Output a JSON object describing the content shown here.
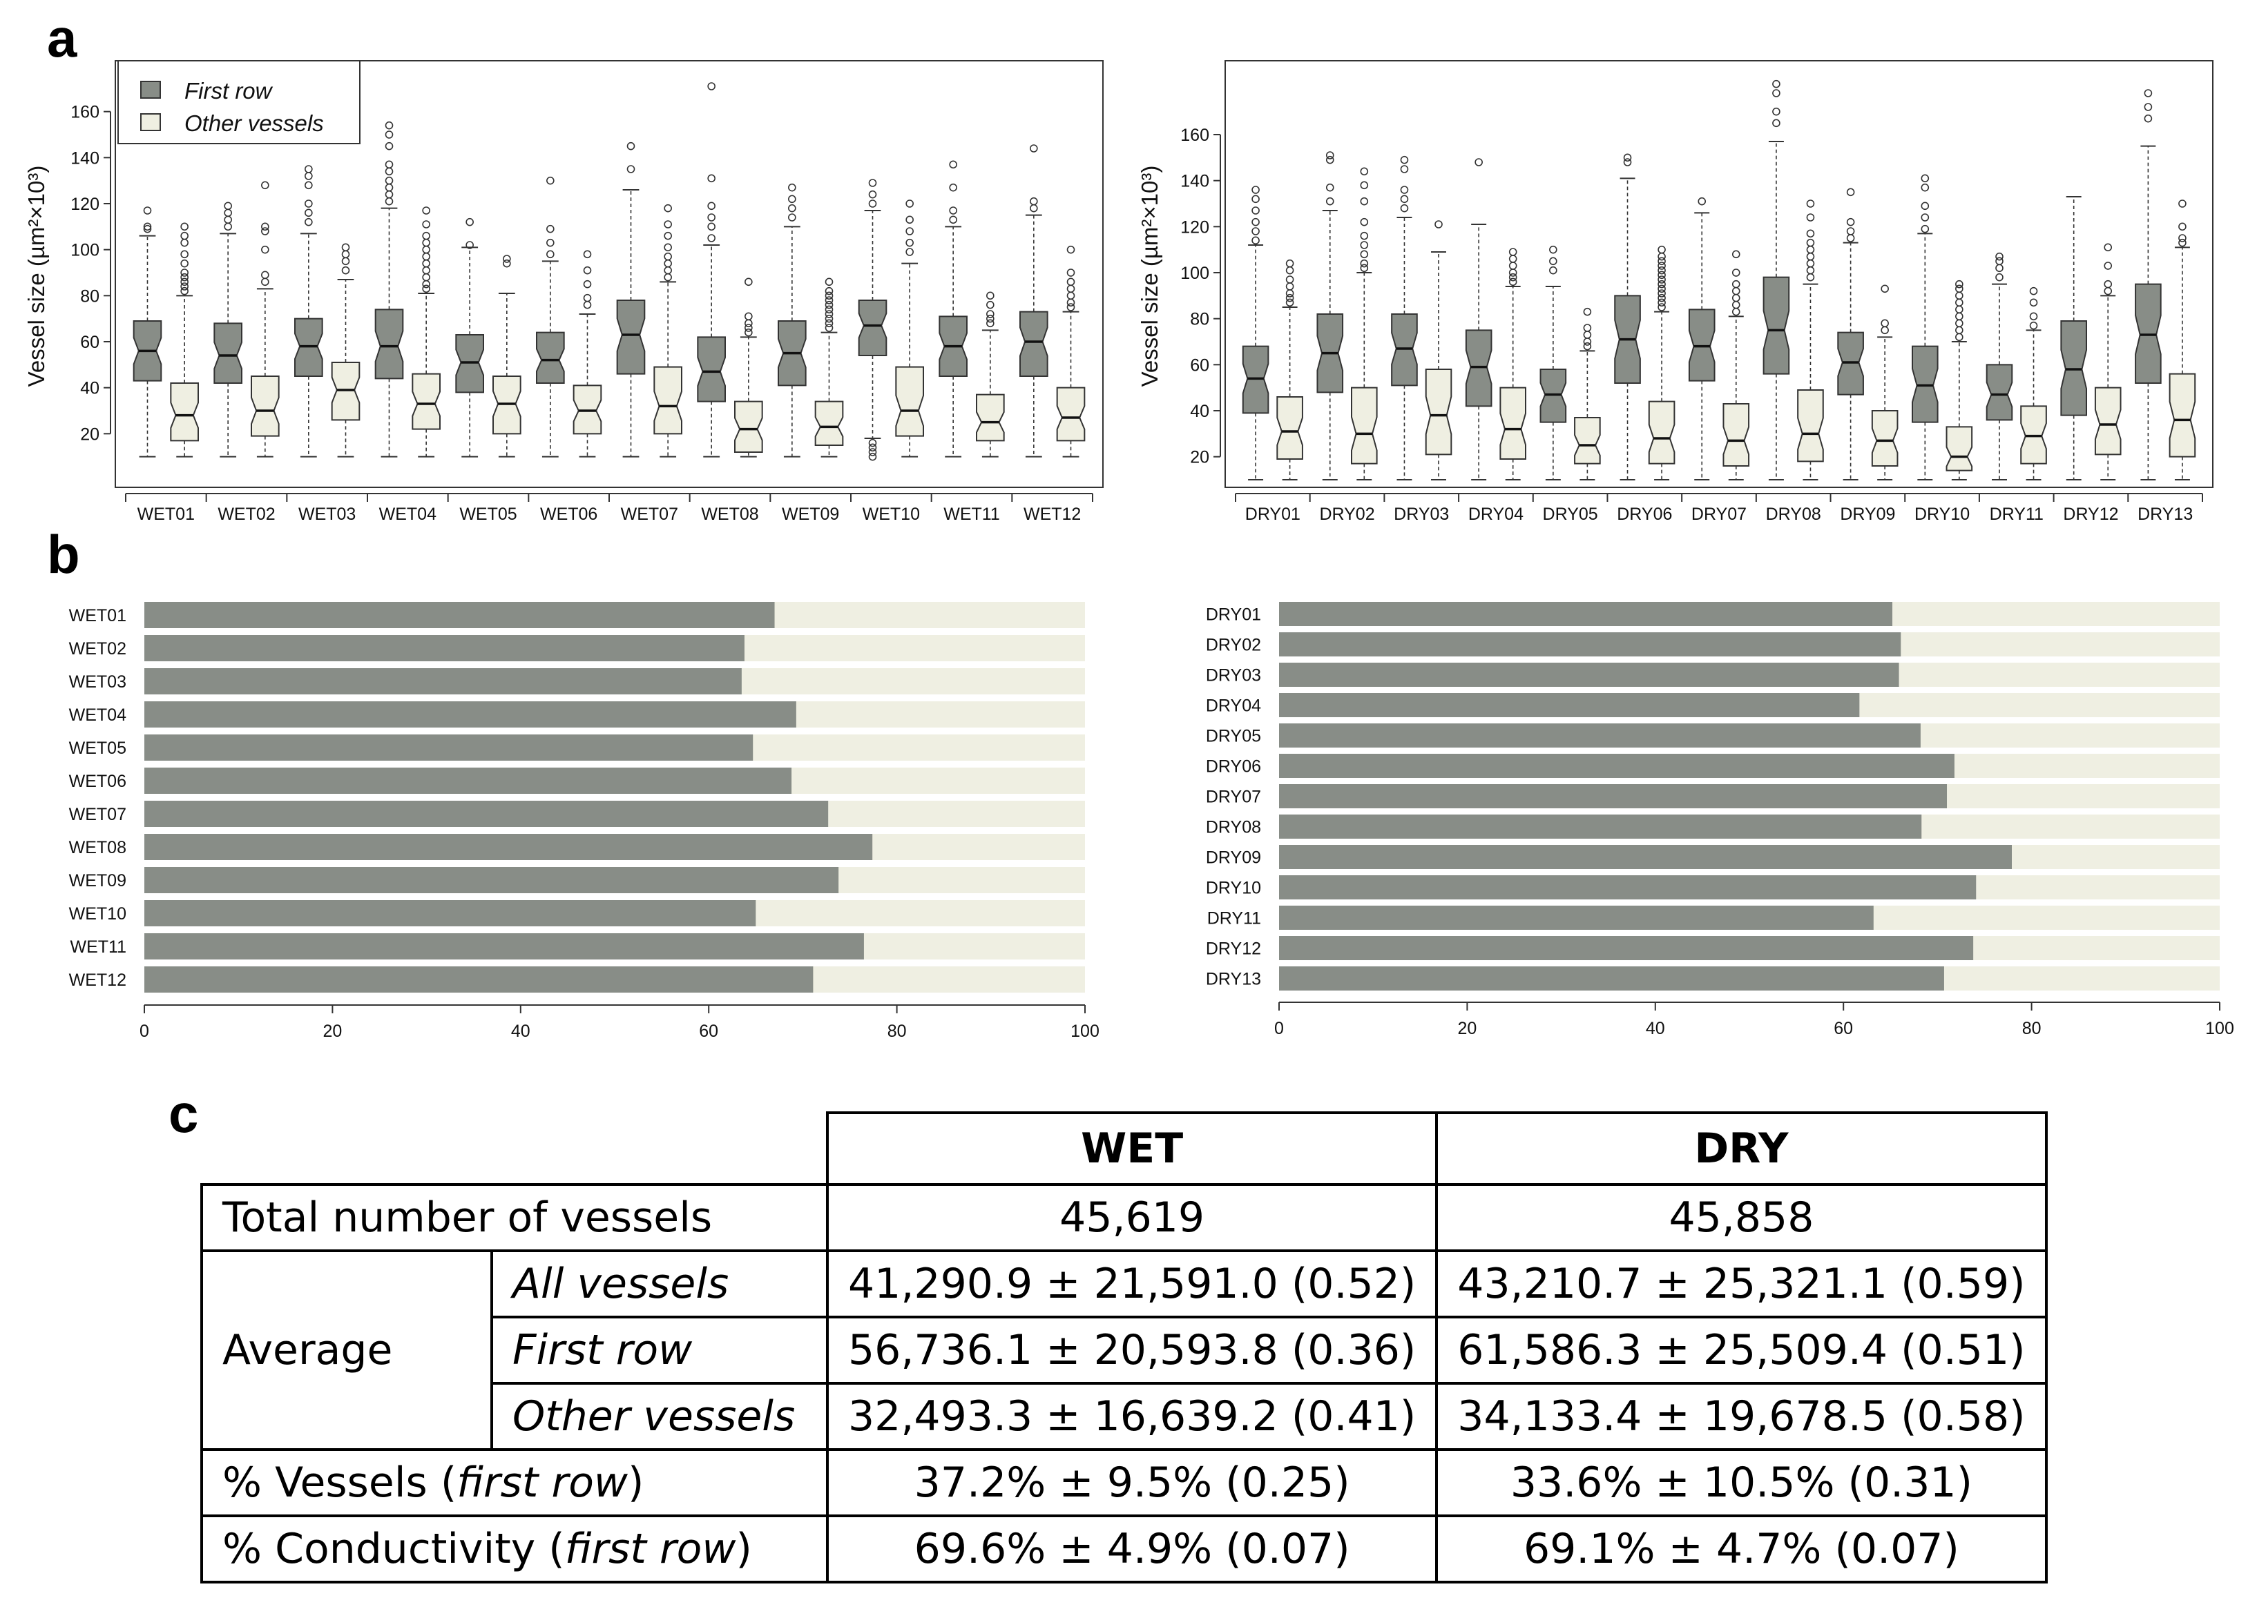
{
  "panel_labels": {
    "a": "a",
    "b": "b",
    "c": "c"
  },
  "colors": {
    "first_row": "#888d87",
    "other_vessels": "#efefe2",
    "outline": "#333333"
  },
  "legend": {
    "first_row": "First row",
    "other_vessels": "Other vessels"
  },
  "chart_data": [
    {
      "type": "boxplot",
      "id": "a-wet",
      "ylabel": "Vessel size (µm²×10³)",
      "ylim": [
        0,
        180
      ],
      "yticks": [
        20,
        40,
        60,
        80,
        100,
        120,
        140,
        160
      ],
      "categories": [
        "WET01",
        "WET02",
        "WET03",
        "WET04",
        "WET05",
        "WET06",
        "WET07",
        "WET08",
        "WET09",
        "WET10",
        "WET11",
        "WET12"
      ],
      "series": [
        {
          "name": "First row",
          "boxes": [
            {
              "lw": 10,
              "q1": 43,
              "med": 56,
              "q3": 69,
              "uw": 106,
              "out": [
                109,
                110,
                117
              ]
            },
            {
              "lw": 10,
              "q1": 42,
              "med": 54,
              "q3": 68,
              "uw": 107,
              "out": [
                110,
                113,
                116,
                119
              ]
            },
            {
              "lw": 10,
              "q1": 45,
              "med": 58,
              "q3": 70,
              "uw": 107,
              "out": [
                112,
                116,
                120,
                128,
                132,
                135
              ]
            },
            {
              "lw": 10,
              "q1": 44,
              "med": 58,
              "q3": 74,
              "uw": 118,
              "out": [
                121,
                124,
                127,
                130,
                134,
                137,
                145,
                150,
                154
              ]
            },
            {
              "lw": 10,
              "q1": 38,
              "med": 51,
              "q3": 63,
              "uw": 101,
              "out": [
                102,
                112
              ]
            },
            {
              "lw": 10,
              "q1": 42,
              "med": 52,
              "q3": 64,
              "uw": 95,
              "out": [
                98,
                103,
                109,
                130
              ]
            },
            {
              "lw": 10,
              "q1": 46,
              "med": 63,
              "q3": 78,
              "uw": 126,
              "out": [
                135,
                145
              ]
            },
            {
              "lw": 10,
              "q1": 34,
              "med": 47,
              "q3": 62,
              "uw": 102,
              "out": [
                105,
                110,
                114,
                119,
                131,
                171
              ]
            },
            {
              "lw": 10,
              "q1": 41,
              "med": 55,
              "q3": 69,
              "uw": 110,
              "out": [
                114,
                118,
                122,
                127
              ]
            },
            {
              "lw": 18,
              "q1": 54,
              "med": 67,
              "q3": 78,
              "uw": 117,
              "out": [
                10,
                12,
                14,
                16,
                120,
                124,
                129
              ]
            },
            {
              "lw": 10,
              "q1": 45,
              "med": 58,
              "q3": 71,
              "uw": 110,
              "out": [
                113,
                117,
                127,
                137
              ]
            },
            {
              "lw": 10,
              "q1": 45,
              "med": 60,
              "q3": 73,
              "uw": 115,
              "out": [
                118,
                121,
                144
              ]
            }
          ]
        },
        {
          "name": "Other vessels",
          "boxes": [
            {
              "lw": 10,
              "q1": 17,
              "med": 28,
              "q3": 42,
              "uw": 80,
              "out": [
                82,
                84,
                86,
                88,
                90,
                94,
                98,
                103,
                106,
                110
              ]
            },
            {
              "lw": 10,
              "q1": 19,
              "med": 30,
              "q3": 45,
              "uw": 83,
              "out": [
                86,
                89,
                100,
                108,
                110,
                128
              ]
            },
            {
              "lw": 10,
              "q1": 26,
              "med": 39,
              "q3": 51,
              "uw": 87,
              "out": [
                91,
                95,
                98,
                101
              ]
            },
            {
              "lw": 10,
              "q1": 22,
              "med": 33,
              "q3": 46,
              "uw": 81,
              "out": [
                83,
                85,
                88,
                91,
                94,
                97,
                100,
                103,
                106,
                111,
                117
              ]
            },
            {
              "lw": 10,
              "q1": 20,
              "med": 33,
              "q3": 45,
              "uw": 81,
              "out": [
                94,
                96
              ]
            },
            {
              "lw": 10,
              "q1": 20,
              "med": 30,
              "q3": 41,
              "uw": 72,
              "out": [
                76,
                79,
                85,
                91,
                98
              ]
            },
            {
              "lw": 10,
              "q1": 20,
              "med": 32,
              "q3": 49,
              "uw": 86,
              "out": [
                88,
                91,
                94,
                97,
                101,
                106,
                111,
                118
              ]
            },
            {
              "lw": 10,
              "q1": 12,
              "med": 22,
              "q3": 34,
              "uw": 62,
              "out": [
                64,
                66,
                68,
                71,
                86
              ]
            },
            {
              "lw": 10,
              "q1": 15,
              "med": 23,
              "q3": 34,
              "uw": 64,
              "out": [
                66,
                68,
                70,
                72,
                74,
                76,
                78,
                80,
                82,
                86
              ]
            },
            {
              "lw": 10,
              "q1": 19,
              "med": 30,
              "q3": 49,
              "uw": 94,
              "out": [
                99,
                103,
                108,
                113,
                120
              ]
            },
            {
              "lw": 10,
              "q1": 17,
              "med": 25,
              "q3": 37,
              "uw": 65,
              "out": [
                68,
                70,
                72,
                76,
                80
              ]
            },
            {
              "lw": 10,
              "q1": 17,
              "med": 27,
              "q3": 40,
              "uw": 73,
              "out": [
                75,
                77,
                80,
                83,
                86,
                90,
                100
              ]
            }
          ]
        }
      ]
    },
    {
      "type": "boxplot",
      "id": "a-dry",
      "ylabel": "Vessel size (µm²×10³)",
      "ylim": [
        10,
        190
      ],
      "yticks": [
        20,
        40,
        60,
        80,
        100,
        120,
        140,
        160
      ],
      "categories": [
        "DRY01",
        "DRY02",
        "DRY03",
        "DRY04",
        "DRY05",
        "DRY06",
        "DRY07",
        "DRY08",
        "DRY09",
        "DRY10",
        "DRY11",
        "DRY12",
        "DRY13"
      ],
      "series": [
        {
          "name": "First row",
          "boxes": [
            {
              "lw": 10,
              "q1": 39,
              "med": 54,
              "q3": 68,
              "uw": 112,
              "out": [
                114,
                118,
                122,
                127,
                132,
                136
              ]
            },
            {
              "lw": 10,
              "q1": 48,
              "med": 65,
              "q3": 82,
              "uw": 127,
              "out": [
                131,
                137,
                149,
                151
              ]
            },
            {
              "lw": 10,
              "q1": 51,
              "med": 67,
              "q3": 82,
              "uw": 124,
              "out": [
                128,
                132,
                136,
                145,
                149
              ]
            },
            {
              "lw": 10,
              "q1": 42,
              "med": 59,
              "q3": 75,
              "uw": 121,
              "out": [
                148
              ]
            },
            {
              "lw": 10,
              "q1": 35,
              "med": 47,
              "q3": 58,
              "uw": 94,
              "out": [
                101,
                105,
                110
              ]
            },
            {
              "lw": 10,
              "q1": 52,
              "med": 71,
              "q3": 90,
              "uw": 141,
              "out": [
                148,
                150
              ]
            },
            {
              "lw": 10,
              "q1": 53,
              "med": 68,
              "q3": 84,
              "uw": 126,
              "out": [
                131
              ]
            },
            {
              "lw": 10,
              "q1": 56,
              "med": 75,
              "q3": 98,
              "uw": 157,
              "out": [
                165,
                170,
                178,
                182
              ]
            },
            {
              "lw": 10,
              "q1": 47,
              "med": 61,
              "q3": 74,
              "uw": 113,
              "out": [
                115,
                118,
                122,
                135
              ]
            },
            {
              "lw": 10,
              "q1": 35,
              "med": 51,
              "q3": 68,
              "uw": 117,
              "out": [
                119,
                124,
                129,
                137,
                141
              ]
            },
            {
              "lw": 10,
              "q1": 36,
              "med": 47,
              "q3": 60,
              "uw": 95,
              "out": [
                98,
                102,
                105,
                107
              ]
            },
            {
              "lw": 10,
              "q1": 38,
              "med": 58,
              "q3": 79,
              "uw": 133,
              "out": []
            },
            {
              "lw": 10,
              "q1": 52,
              "med": 73,
              "q3": 95,
              "uw": 155,
              "out": [
                167,
                172,
                178
              ]
            }
          ]
        },
        {
          "name": "Other vessels",
          "boxes": [
            {
              "lw": 10,
              "q1": 19,
              "med": 31,
              "q3": 46,
              "uw": 85,
              "out": [
                87,
                89,
                91,
                94,
                97,
                101,
                104
              ]
            },
            {
              "lw": 10,
              "q1": 17,
              "med": 30,
              "q3": 50,
              "uw": 100,
              "out": [
                102,
                104,
                108,
                112,
                116,
                122,
                131,
                138,
                144
              ]
            },
            {
              "lw": 10,
              "q1": 21,
              "med": 38,
              "q3": 58,
              "uw": 109,
              "out": [
                121
              ]
            },
            {
              "lw": 10,
              "q1": 19,
              "med": 32,
              "q3": 50,
              "uw": 94,
              "out": [
                96,
                98,
                100,
                103,
                106,
                109
              ]
            },
            {
              "lw": 10,
              "q1": 17,
              "med": 25,
              "q3": 37,
              "uw": 66,
              "out": [
                68,
                70,
                73,
                76,
                83
              ]
            },
            {
              "lw": 10,
              "q1": 17,
              "med": 28,
              "q3": 44,
              "uw": 83,
              "out": [
                85,
                87,
                89,
                91,
                93,
                95,
                97,
                99,
                101,
                103,
                105,
                107,
                110
              ]
            },
            {
              "lw": 10,
              "q1": 16,
              "med": 27,
              "q3": 43,
              "uw": 81,
              "out": [
                83,
                86,
                89,
                92,
                95,
                100,
                108
              ]
            },
            {
              "lw": 10,
              "q1": 18,
              "med": 30,
              "q3": 49,
              "uw": 95,
              "out": [
                98,
                101,
                104,
                107,
                110,
                113,
                117,
                124,
                130
              ]
            },
            {
              "lw": 10,
              "q1": 16,
              "med": 27,
              "q3": 40,
              "uw": 72,
              "out": [
                75,
                78,
                93
              ]
            },
            {
              "lw": 10,
              "q1": 14,
              "med": 20,
              "q3": 33,
              "uw": 70,
              "out": [
                72,
                75,
                78,
                81,
                84,
                87,
                90,
                93,
                95
              ]
            },
            {
              "lw": 10,
              "q1": 17,
              "med": 29,
              "q3": 42,
              "uw": 75,
              "out": [
                77,
                81,
                87,
                92
              ]
            },
            {
              "lw": 10,
              "q1": 21,
              "med": 34,
              "q3": 50,
              "uw": 90,
              "out": [
                92,
                95,
                103,
                111
              ]
            },
            {
              "lw": 10,
              "q1": 20,
              "med": 36,
              "q3": 56,
              "uw": 111,
              "out": [
                113,
                115,
                120,
                130
              ]
            }
          ]
        }
      ]
    },
    {
      "type": "bar",
      "stacked": true,
      "orientation": "horizontal",
      "id": "b-wet",
      "categories": [
        "WET01",
        "WET02",
        "WET03",
        "WET04",
        "WET05",
        "WET06",
        "WET07",
        "WET08",
        "WET09",
        "WET10",
        "WET11",
        "WET12"
      ],
      "values": [
        67.0,
        63.8,
        63.5,
        69.3,
        64.7,
        68.8,
        72.7,
        77.4,
        73.8,
        65.0,
        76.5,
        71.1
      ],
      "xlim": [
        0,
        100
      ],
      "xticks": [
        0,
        20,
        40,
        60,
        80,
        100
      ]
    },
    {
      "type": "bar",
      "stacked": true,
      "orientation": "horizontal",
      "id": "b-dry",
      "categories": [
        "DRY01",
        "DRY02",
        "DRY03",
        "DRY04",
        "DRY05",
        "DRY06",
        "DRY07",
        "DRY08",
        "DRY09",
        "DRY10",
        "DRY11",
        "DRY12",
        "DRY13"
      ],
      "values": [
        65.2,
        66.1,
        65.9,
        61.7,
        68.2,
        71.8,
        71.0,
        68.3,
        77.9,
        74.1,
        63.2,
        73.8,
        70.7
      ],
      "xlim": [
        0,
        100
      ],
      "xticks": [
        0,
        20,
        40,
        60,
        80,
        100
      ]
    },
    {
      "type": "table",
      "id": "c-table",
      "header": {
        "wet": "WET",
        "dry": "DRY"
      },
      "total_label": "Total number of vessels",
      "total": {
        "wet": "45,619",
        "dry": "45,858"
      },
      "average_label": "Average",
      "average_rows": [
        {
          "label": "All vessels",
          "wet": "41,290.9 ± 21,591.0 (0.52)",
          "dry": "43,210.7 ± 25,321.1 (0.59)"
        },
        {
          "label": "First row",
          "wet": "56,736.1 ± 20,593.8 (0.36)",
          "dry": "61,586.3 ± 25,509.4 (0.51)"
        },
        {
          "label": "Other vessels",
          "wet": "32,493.3 ± 16,639.2 (0.41)",
          "dry": "34,133.4 ± 19,678.5 (0.58)"
        }
      ],
      "pct_vessels": {
        "prefix": "% Vessels (",
        "italic": "first row",
        "suffix": ")",
        "wet": "37.2% ± 9.5% (0.25)",
        "dry": "33.6% ± 10.5% (0.31)"
      },
      "pct_conductivity": {
        "prefix": "% Conductivity (",
        "italic": "first row",
        "suffix": ")",
        "wet": "69.6% ± 4.9% (0.07)",
        "dry": "69.1% ± 4.7% (0.07)"
      }
    }
  ]
}
